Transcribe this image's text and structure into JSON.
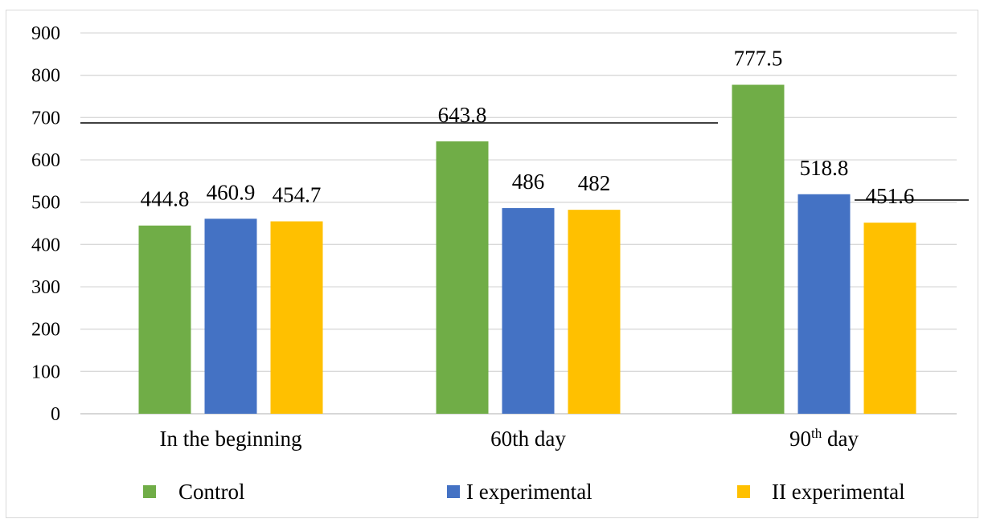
{
  "chart_data": {
    "type": "bar",
    "categories": [
      "In the beginning",
      "60th day",
      "90th day"
    ],
    "series": [
      {
        "name": "Control",
        "color": "#70ad47",
        "values": [
          444.8,
          643.8,
          777.5
        ],
        "labels": [
          "444.8",
          "643.8",
          "777.5"
        ]
      },
      {
        "name": "I experimental",
        "color": "#4472c4",
        "values": [
          460.9,
          486,
          518.8
        ],
        "labels": [
          "460.9",
          "486",
          "518.8"
        ]
      },
      {
        "name": "II experimental",
        "color": "#ffc000",
        "values": [
          454.7,
          482,
          451.6
        ],
        "labels": [
          "454.7",
          "482",
          "451.6"
        ]
      }
    ],
    "ylim": [
      0,
      900
    ],
    "yticks": [
      0,
      100,
      200,
      300,
      400,
      500,
      600,
      700,
      800,
      900
    ],
    "grid": true,
    "legend_position": "bottom",
    "title": "",
    "xlabel": "",
    "ylabel": ""
  }
}
